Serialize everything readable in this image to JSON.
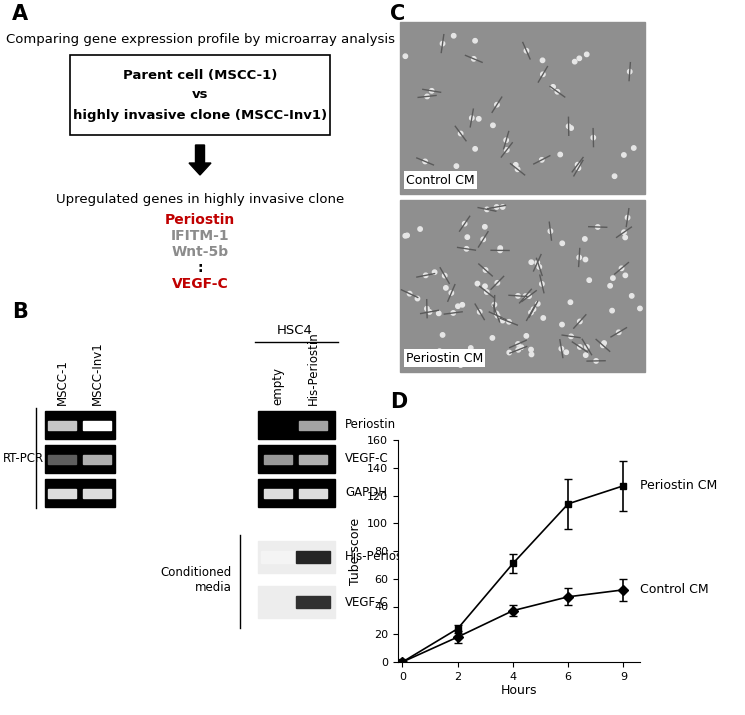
{
  "A": {
    "label": "A",
    "heading": "Comparing gene expression profile by microarray analysis",
    "box": [
      "Parent cell (MSCC-1)",
      "vs",
      "highly invasive clone (MSCC-Inv1)"
    ],
    "result": "Upregulated genes in highly invasive clone",
    "genes": [
      {
        "name": "Periostin",
        "color": "#c00000"
      },
      {
        "name": "IFITM-1",
        "color": "#8c8c8c"
      },
      {
        "name": "Wnt-5b",
        "color": "#8c8c8c"
      },
      {
        "name": ":",
        "color": "#000000"
      },
      {
        "name": "VEGF-C",
        "color": "#c00000"
      }
    ]
  },
  "B": {
    "label": "B",
    "cell_line": "HSC4",
    "lanes": [
      "MSCC-1",
      "MSCC-Inv1",
      "empty",
      "His-Periostin"
    ],
    "rt_pcr": {
      "label": "RT-PCR",
      "rows": [
        {
          "name": "Periostin",
          "band_intensity": [
            0.75,
            1.0,
            0.0,
            0.6
          ]
        },
        {
          "name": "VEGF-C",
          "band_intensity": [
            0.3,
            0.65,
            0.55,
            0.65
          ]
        },
        {
          "name": "GAPDH",
          "band_intensity": [
            0.85,
            0.85,
            0.85,
            0.85
          ]
        }
      ]
    },
    "conditioned_media": {
      "label": "Conditioned\nmedia",
      "rows": [
        {
          "name": "His-Periostin",
          "band_intensity": [
            0.05,
            0.95
          ]
        },
        {
          "name": "VEGF-C",
          "band_intensity": [
            0.0,
            0.9
          ]
        }
      ]
    }
  },
  "C": {
    "label": "C",
    "images": [
      "Control CM",
      "Periostin CM"
    ]
  },
  "D": {
    "label": "D"
  },
  "chart_data": {
    "type": "line",
    "x_label": "Hours",
    "y_label": "Tube score",
    "categories": [
      "0",
      "2",
      "4",
      "6",
      "9"
    ],
    "series": [
      {
        "name": "Periostin CM",
        "color": "#000000",
        "marker": "square",
        "values": [
          0,
          24,
          71,
          114,
          127
        ],
        "errors": [
          0,
          3,
          7,
          18,
          18
        ]
      },
      {
        "name": "Control CM",
        "color": "#000000",
        "marker": "diamond",
        "values": [
          0,
          18,
          37,
          47,
          52
        ],
        "errors": [
          0,
          4,
          4,
          6,
          8
        ]
      }
    ],
    "ylim": [
      0,
      160
    ],
    "yticks": [
      0,
      20,
      40,
      60,
      80,
      100,
      120,
      140,
      160
    ]
  }
}
